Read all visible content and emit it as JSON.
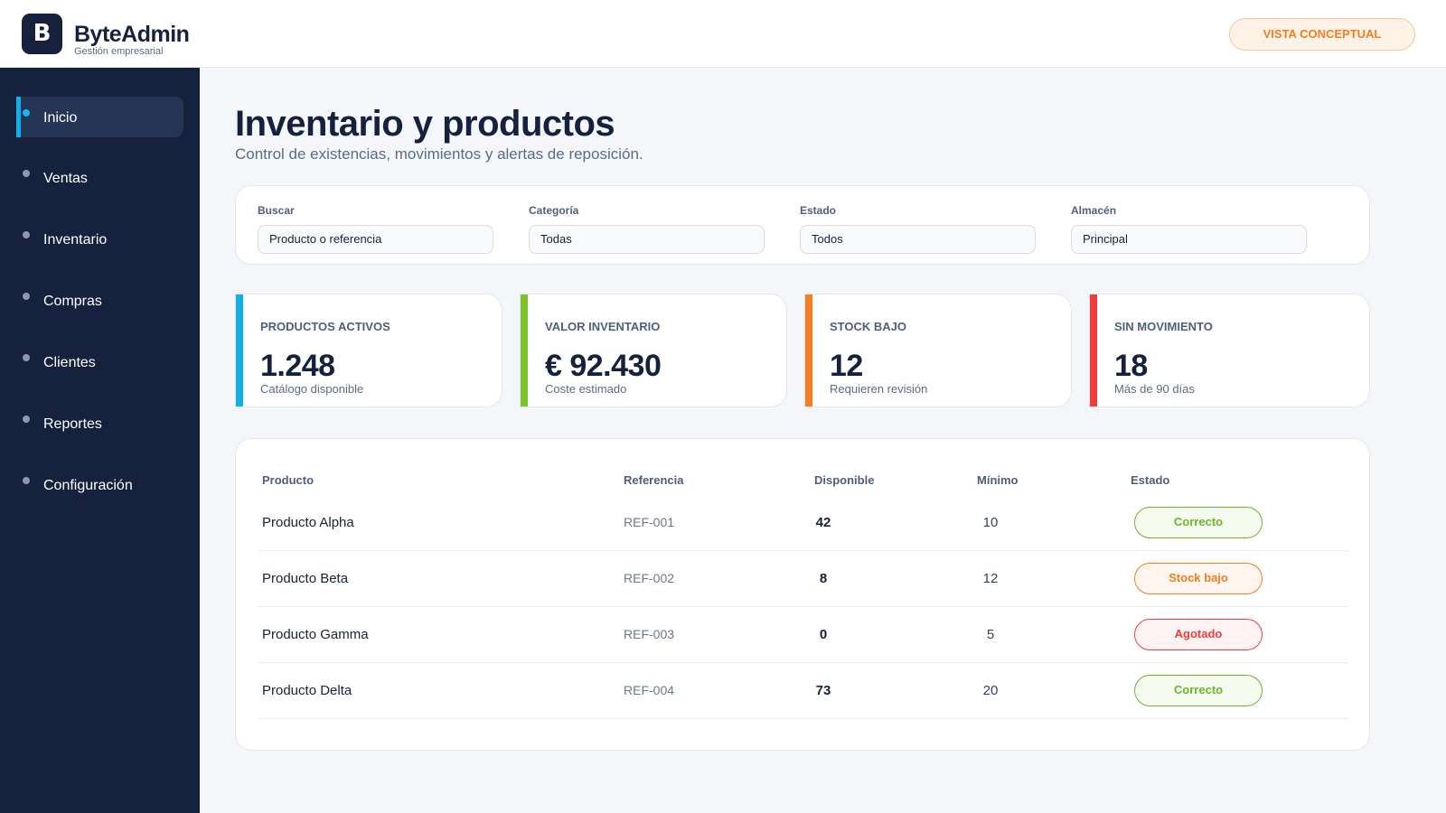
{
  "header": {
    "logo_letter": "B",
    "brand_name": "ByteAdmin",
    "brand_sub": "Gestión empresarial",
    "badge": "VISTA CONCEPTUAL"
  },
  "sidebar": {
    "items": [
      {
        "label": "Inicio",
        "active": true
      },
      {
        "label": "Ventas"
      },
      {
        "label": "Inventario"
      },
      {
        "label": "Compras"
      },
      {
        "label": "Clientes"
      },
      {
        "label": "Reportes"
      },
      {
        "label": "Configuración"
      }
    ]
  },
  "page": {
    "title": "Inventario y productos",
    "subtitle": "Control de existencias, movimientos y alertas de reposición."
  },
  "filters": [
    {
      "label": "Buscar",
      "value": "Producto o referencia"
    },
    {
      "label": "Categoría",
      "value": "Todas"
    },
    {
      "label": "Estado",
      "value": "Todos"
    },
    {
      "label": "Almacén",
      "value": "Principal"
    }
  ],
  "stats": [
    {
      "label": "PRODUCTOS ACTIVOS",
      "value": "1.248",
      "sub": "Catálogo disponible",
      "color": "#12b0e8"
    },
    {
      "label": "VALOR INVENTARIO",
      "value": "€ 92.430",
      "sub": "Coste estimado",
      "color": "#7cc22a"
    },
    {
      "label": "STOCK BAJO",
      "value": "12",
      "sub": "Requieren revisión",
      "color": "#f57c1f"
    },
    {
      "label": "SIN MOVIMIENTO",
      "value": "18",
      "sub": "Más de 90 días",
      "color": "#ef3d3d"
    }
  ],
  "table": {
    "headers": {
      "product": "Producto",
      "reference": "Referencia",
      "available": "Disponible",
      "minimum": "Mínimo",
      "status": "Estado"
    },
    "rows": [
      {
        "product": "Producto Alpha",
        "reference": "REF-001",
        "available": "42",
        "minimum": "10",
        "status": "Correcto"
      },
      {
        "product": "Producto Beta",
        "reference": "REF-002",
        "available": "8",
        "minimum": "12",
        "status": "Stock bajo"
      },
      {
        "product": "Producto Gamma",
        "reference": "REF-003",
        "available": "0",
        "minimum": "5",
        "status": "Agotado"
      },
      {
        "product": "Producto Delta",
        "reference": "REF-004",
        "available": "73",
        "minimum": "20",
        "status": "Correcto"
      }
    ]
  },
  "colors": {
    "sidebar_bg": "#16213e",
    "accent_active": "#12b0e8",
    "status_ok": "#6bb62a",
    "status_low": "#f57c1f",
    "status_out": "#ef3d3d",
    "badge": "#f57c1f"
  }
}
